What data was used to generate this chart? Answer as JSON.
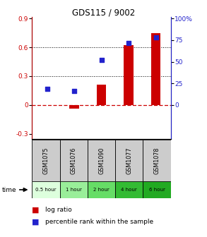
{
  "title": "GDS115 / 9002",
  "samples": [
    "GSM1075",
    "GSM1076",
    "GSM1090",
    "GSM1077",
    "GSM1078"
  ],
  "time_labels": [
    "0.5 hour",
    "1 hour",
    "2 hour",
    "4 hour",
    "6 hour"
  ],
  "log_ratio": [
    0.0,
    -0.04,
    0.21,
    0.62,
    0.75
  ],
  "percentile_rank_pct": [
    18.5,
    16.5,
    52.0,
    72.0,
    78.0
  ],
  "ylim_left": [
    -0.35,
    0.92
  ],
  "ylim_right": [
    -9.72,
    100
  ],
  "yticks_left": [
    -0.3,
    0.0,
    0.3,
    0.6,
    0.9
  ],
  "yticks_right": [
    0,
    25,
    50,
    75,
    100
  ],
  "ytick_labels_left": [
    "-0.3",
    "0",
    "0.3",
    "0.6",
    "0.9"
  ],
  "ytick_labels_right": [
    "0",
    "25",
    "50",
    "75",
    "100%"
  ],
  "bar_color": "#cc0000",
  "dot_color": "#2222cc",
  "zero_line_color": "#cc0000",
  "bg_color": "#ffffff",
  "sample_box_color": "#cccccc",
  "time_bg_colors": [
    "#ddffdd",
    "#99ee99",
    "#66dd66",
    "#33bb33",
    "#22aa22"
  ],
  "bar_width": 0.35
}
